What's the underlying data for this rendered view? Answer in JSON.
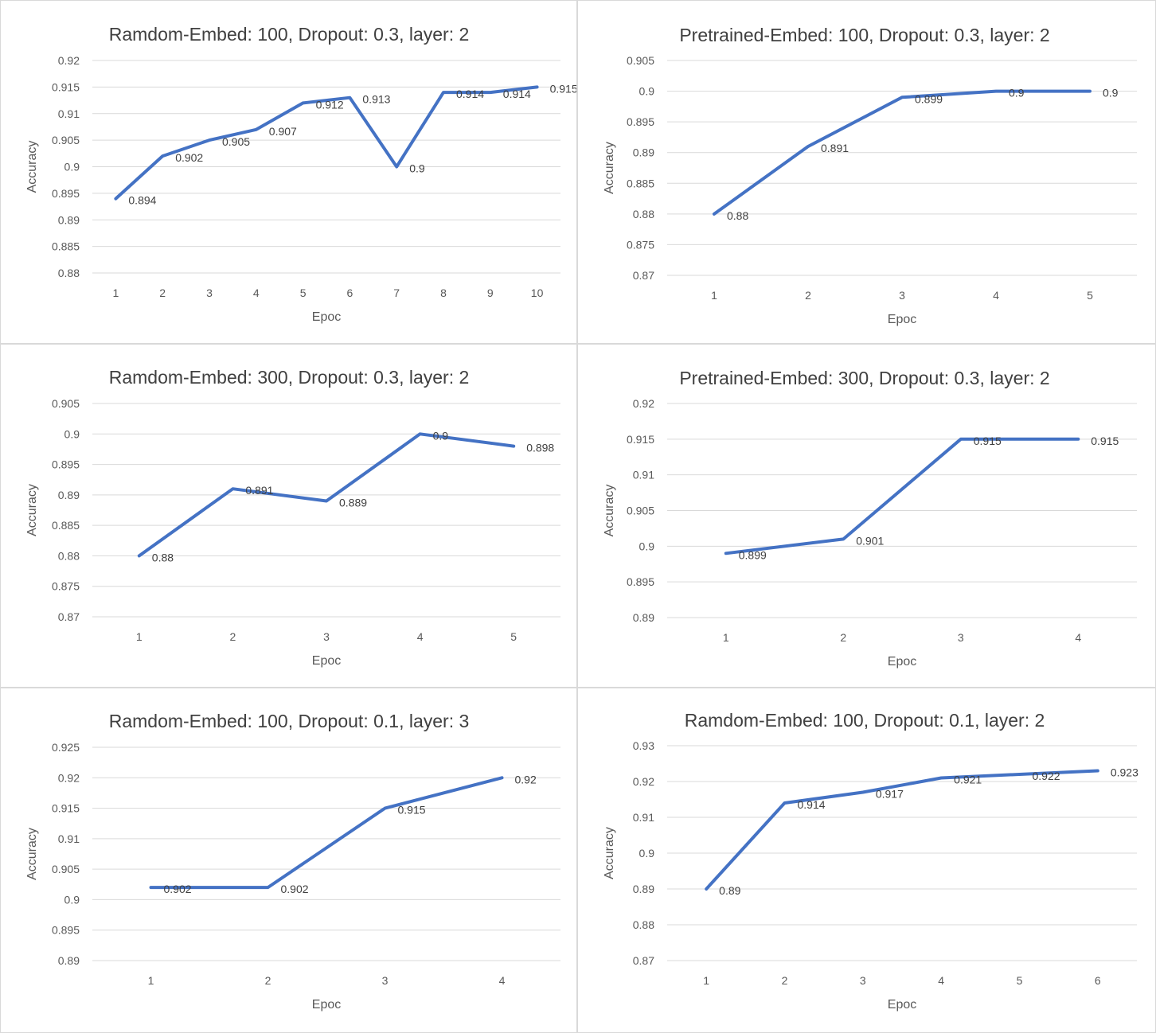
{
  "colors": {
    "series": "#4472c4",
    "grid": "#d9d9d9",
    "text": "#595959",
    "title": "#404040"
  },
  "chart_data": [
    {
      "type": "line",
      "title": "Ramdom-Embed: 100, Dropout: 0.3,  layer: 2",
      "xlabel": "Epoc",
      "ylabel": "Accuracy",
      "categories": [
        "1",
        "2",
        "3",
        "4",
        "5",
        "6",
        "7",
        "8",
        "9",
        "10"
      ],
      "values": [
        0.894,
        0.902,
        0.905,
        0.907,
        0.912,
        0.913,
        0.9,
        0.914,
        0.914,
        0.915
      ],
      "data_labels": [
        "0.894",
        "0.902",
        "0.905",
        "0.907",
        "0.912",
        "0.913",
        "0.9",
        "0.914",
        "0.914",
        "0.915"
      ],
      "ylim": [
        0.88,
        0.92
      ],
      "yticks": [
        "0.92",
        "0.915",
        "0.91",
        "0.905",
        "0.9",
        "0.895",
        "0.89",
        "0.885",
        "0.88"
      ],
      "grid": true,
      "legend": "none"
    },
    {
      "type": "line",
      "title": "Pretrained-Embed: 100, Dropout: 0.3,  layer: 2",
      "xlabel": "Epoc",
      "ylabel": "Accuracy",
      "categories": [
        "1",
        "2",
        "3",
        "4",
        "5"
      ],
      "values": [
        0.88,
        0.891,
        0.899,
        0.9,
        0.9
      ],
      "data_labels": [
        "0.88",
        "0.891",
        "0.899",
        "0.9",
        "0.9"
      ],
      "ylim": [
        0.87,
        0.905
      ],
      "yticks": [
        "0.905",
        "0.9",
        "0.895",
        "0.89",
        "0.885",
        "0.88",
        "0.875",
        "0.87"
      ],
      "grid": true,
      "legend": "none"
    },
    {
      "type": "line",
      "title": "Ramdom-Embed: 300, Dropout: 0.3,  layer: 2",
      "xlabel": "Epoc",
      "ylabel": "Accuracy",
      "categories": [
        "1",
        "2",
        "3",
        "4",
        "5"
      ],
      "values": [
        0.88,
        0.891,
        0.889,
        0.9,
        0.898
      ],
      "data_labels": [
        "0.88",
        "0.891",
        "0.889",
        "0.9",
        "0.898"
      ],
      "ylim": [
        0.87,
        0.905
      ],
      "yticks": [
        "0.905",
        "0.9",
        "0.895",
        "0.89",
        "0.885",
        "0.88",
        "0.875",
        "0.87"
      ],
      "grid": true,
      "legend": "none"
    },
    {
      "type": "line",
      "title": "Pretrained-Embed: 300, Dropout: 0.3,  layer: 2",
      "xlabel": "Epoc",
      "ylabel": "Accuracy",
      "categories": [
        "1",
        "2",
        "3",
        "4"
      ],
      "values": [
        0.899,
        0.901,
        0.915,
        0.915
      ],
      "data_labels": [
        "0.899",
        "0.901",
        "0.915",
        "0.915"
      ],
      "ylim": [
        0.89,
        0.92
      ],
      "yticks": [
        "0.92",
        "0.915",
        "0.91",
        "0.905",
        "0.9",
        "0.895",
        "0.89"
      ],
      "grid": true,
      "legend": "none"
    },
    {
      "type": "line",
      "title": "Ramdom-Embed: 100, Dropout: 0.1,  layer: 3",
      "xlabel": "Epoc",
      "ylabel": "Accuracy",
      "categories": [
        "1",
        "2",
        "3",
        "4"
      ],
      "values": [
        0.902,
        0.902,
        0.915,
        0.92
      ],
      "data_labels": [
        "0.902",
        "0.902",
        "0.915",
        "0.92"
      ],
      "ylim": [
        0.89,
        0.925
      ],
      "yticks": [
        "0.925",
        "0.92",
        "0.915",
        "0.91",
        "0.905",
        "0.9",
        "0.895",
        "0.89"
      ],
      "grid": true,
      "legend": "none"
    },
    {
      "type": "line",
      "title": "Ramdom-Embed: 100, Dropout: 0.1,  layer: 2",
      "xlabel": "Epoc",
      "ylabel": "Accuracy",
      "categories": [
        "1",
        "2",
        "3",
        "4",
        "5",
        "6"
      ],
      "values": [
        0.89,
        0.914,
        0.917,
        0.921,
        0.922,
        0.923
      ],
      "data_labels": [
        "0.89",
        "0.914",
        "0.917",
        "0.921",
        "0.922",
        "0.923"
      ],
      "ylim": [
        0.87,
        0.93
      ],
      "yticks": [
        "0.93",
        "0.92",
        "0.91",
        "0.9",
        "0.89",
        "0.88",
        "0.87"
      ],
      "grid": true,
      "legend": "none"
    }
  ]
}
